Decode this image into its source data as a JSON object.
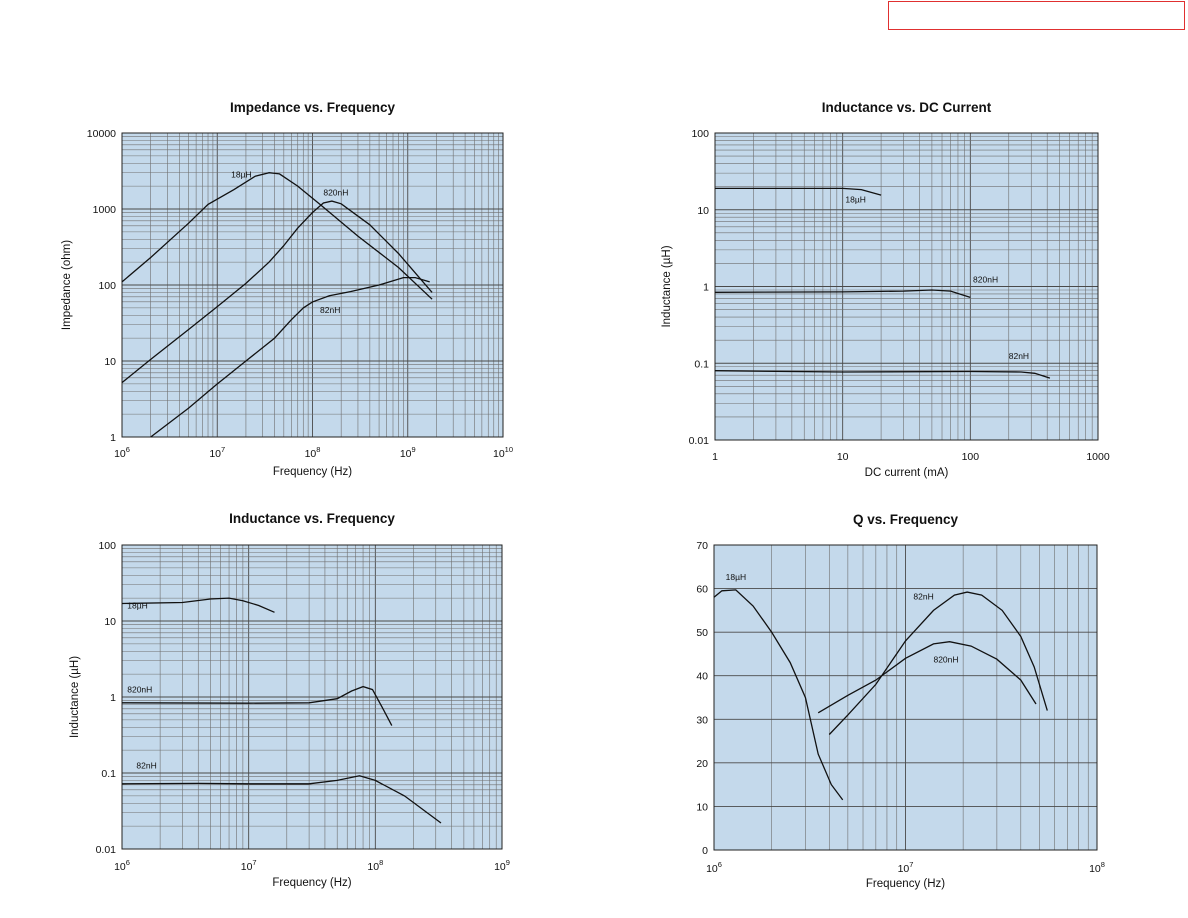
{
  "header": {
    "box_label": ""
  },
  "chart_data": [
    {
      "id": "impedance",
      "type": "line",
      "title": "Impedance vs. Frequency",
      "xlabel": "Frequency (Hz)",
      "ylabel": "Impedance (ohm)",
      "xscale": "log",
      "yscale": "log",
      "xlim": [
        1000000,
        10000000000
      ],
      "ylim": [
        1,
        10000
      ],
      "x_ticks": [
        {
          "base": "10",
          "exp": "6",
          "v": 1000000
        },
        {
          "base": "10",
          "exp": "7",
          "v": 10000000
        },
        {
          "base": "10",
          "exp": "8",
          "v": 100000000
        },
        {
          "base": "10",
          "exp": "9",
          "v": 1000000000
        },
        {
          "base": "10",
          "exp": "10",
          "v": 10000000000
        }
      ],
      "y_ticks": [
        {
          "label": "1",
          "v": 1
        },
        {
          "label": "10",
          "v": 10
        },
        {
          "label": "100",
          "v": 100
        },
        {
          "label": "1000",
          "v": 1000
        },
        {
          "label": "10000",
          "v": 10000
        }
      ],
      "grid": true,
      "series": [
        {
          "name": "18µH",
          "label_at": [
            14000000,
            2600
          ],
          "points": [
            [
              1000000,
              110
            ],
            [
              2000000,
              230
            ],
            [
              5000000,
              650
            ],
            [
              8000000,
              1150
            ],
            [
              15000000,
              1800
            ],
            [
              25000000,
              2700
            ],
            [
              35000000,
              3000
            ],
            [
              45000000,
              2900
            ],
            [
              70000000,
              2000
            ],
            [
              120000000,
              1150
            ],
            [
              300000000,
              440
            ],
            [
              800000000,
              170
            ],
            [
              1800000000,
              65
            ]
          ]
        },
        {
          "name": "820nH",
          "label_at": [
            130000000,
            1500
          ],
          "points": [
            [
              1000000,
              5.2
            ],
            [
              2000000,
              10.5
            ],
            [
              5000000,
              26
            ],
            [
              10000000,
              52
            ],
            [
              20000000,
              105
            ],
            [
              35000000,
              200
            ],
            [
              50000000,
              330
            ],
            [
              70000000,
              560
            ],
            [
              100000000,
              900
            ],
            [
              130000000,
              1200
            ],
            [
              160000000,
              1270
            ],
            [
              200000000,
              1170
            ],
            [
              400000000,
              620
            ],
            [
              800000000,
              260
            ],
            [
              1800000000,
              80
            ]
          ]
        },
        {
          "name": "82nH",
          "label_at": [
            120000000,
            43
          ],
          "points": [
            [
              2000000,
              1
            ],
            [
              5000000,
              2.4
            ],
            [
              10000000,
              5
            ],
            [
              20000000,
              10
            ],
            [
              40000000,
              20
            ],
            [
              60000000,
              35
            ],
            [
              80000000,
              50
            ],
            [
              100000000,
              60
            ],
            [
              150000000,
              72
            ],
            [
              250000000,
              82
            ],
            [
              500000000,
              100
            ],
            [
              900000000,
              125
            ],
            [
              1200000000,
              125
            ],
            [
              1700000000,
              110
            ]
          ]
        }
      ]
    },
    {
      "id": "inductance_dc",
      "type": "line",
      "title": "Inductance vs. DC Current",
      "xlabel": "DC current (mA)",
      "ylabel": "Inductance (µH)",
      "xscale": "log",
      "yscale": "log",
      "xlim": [
        1,
        1000
      ],
      "ylim": [
        0.01,
        100
      ],
      "x_ticks": [
        {
          "label": "1",
          "v": 1
        },
        {
          "label": "10",
          "v": 10
        },
        {
          "label": "100",
          "v": 100
        },
        {
          "label": "1000",
          "v": 1000
        }
      ],
      "y_ticks": [
        {
          "label": "0.01",
          "v": 0.01
        },
        {
          "label": "0.1",
          "v": 0.1
        },
        {
          "label": "1",
          "v": 1
        },
        {
          "label": "10",
          "v": 10
        },
        {
          "label": "100",
          "v": 100
        }
      ],
      "grid": true,
      "series": [
        {
          "name": "18µH",
          "label_at": [
            10.5,
            12.5
          ],
          "points": [
            [
              1,
              19
            ],
            [
              5,
              19
            ],
            [
              10,
              19
            ],
            [
              14,
              18.3
            ],
            [
              20,
              15.5
            ]
          ]
        },
        {
          "name": "820nH",
          "label_at": [
            105,
            1.12
          ],
          "points": [
            [
              1,
              0.84
            ],
            [
              10,
              0.85
            ],
            [
              30,
              0.87
            ],
            [
              50,
              0.9
            ],
            [
              70,
              0.87
            ],
            [
              100,
              0.72
            ]
          ]
        },
        {
          "name": "82nH",
          "label_at": [
            200,
            0.113
          ],
          "points": [
            [
              1,
              0.08
            ],
            [
              10,
              0.077
            ],
            [
              100,
              0.078
            ],
            [
              250,
              0.077
            ],
            [
              320,
              0.074
            ],
            [
              420,
              0.064
            ]
          ]
        }
      ]
    },
    {
      "id": "inductance_freq",
      "type": "line",
      "title": "Inductance vs. Frequency",
      "xlabel": "Frequency (Hz)",
      "ylabel": "Inductance (µH)",
      "xscale": "log",
      "yscale": "log",
      "xlim": [
        1000000,
        1000000000
      ],
      "ylim": [
        0.01,
        100
      ],
      "x_ticks": [
        {
          "base": "10",
          "exp": "6",
          "v": 1000000
        },
        {
          "base": "10",
          "exp": "7",
          "v": 10000000
        },
        {
          "base": "10",
          "exp": "8",
          "v": 100000000
        },
        {
          "base": "10",
          "exp": "9",
          "v": 1000000000
        }
      ],
      "y_ticks": [
        {
          "label": "0.01",
          "v": 0.01
        },
        {
          "label": "0.1",
          "v": 0.1
        },
        {
          "label": "1",
          "v": 1
        },
        {
          "label": "10",
          "v": 10
        },
        {
          "label": "100",
          "v": 100
        }
      ],
      "grid": true,
      "series": [
        {
          "name": "18µH",
          "label_at": [
            1100000,
            14.5
          ],
          "points": [
            [
              1000000,
              17
            ],
            [
              3000000,
              17.5
            ],
            [
              5000000,
              19.5
            ],
            [
              7000000,
              20
            ],
            [
              9000000,
              18.5
            ],
            [
              12000000,
              16
            ],
            [
              16000000,
              13
            ]
          ]
        },
        {
          "name": "820nH",
          "label_at": [
            1100000,
            1.15
          ],
          "points": [
            [
              1000000,
              0.84
            ],
            [
              10000000,
              0.83
            ],
            [
              30000000,
              0.84
            ],
            [
              50000000,
              0.95
            ],
            [
              65000000,
              1.2
            ],
            [
              80000000,
              1.37
            ],
            [
              95000000,
              1.25
            ],
            [
              115000000,
              0.7
            ],
            [
              135000000,
              0.42
            ]
          ]
        },
        {
          "name": "82nH",
          "label_at": [
            1300000,
            0.115
          ],
          "points": [
            [
              1000000,
              0.072
            ],
            [
              4000000,
              0.073
            ],
            [
              10000000,
              0.072
            ],
            [
              30000000,
              0.072
            ],
            [
              50000000,
              0.08
            ],
            [
              75000000,
              0.092
            ],
            [
              100000000,
              0.08
            ],
            [
              170000000,
              0.05
            ],
            [
              330000000,
              0.022
            ]
          ]
        }
      ]
    },
    {
      "id": "q_freq",
      "type": "line",
      "title": "Q vs. Frequency",
      "xlabel": "Frequency (Hz)",
      "ylabel": "",
      "xscale": "log",
      "yscale": "linear",
      "xlim": [
        1000000,
        100000000
      ],
      "ylim": [
        0,
        70
      ],
      "x_ticks": [
        {
          "base": "10",
          "exp": "6",
          "v": 1000000
        },
        {
          "base": "10",
          "exp": "7",
          "v": 10000000
        },
        {
          "base": "10",
          "exp": "8",
          "v": 100000000
        }
      ],
      "y_ticks": [
        {
          "label": "0",
          "v": 0
        },
        {
          "label": "10",
          "v": 10
        },
        {
          "label": "20",
          "v": 20
        },
        {
          "label": "30",
          "v": 30
        },
        {
          "label": "40",
          "v": 40
        },
        {
          "label": "50",
          "v": 50
        },
        {
          "label": "60",
          "v": 60
        },
        {
          "label": "70",
          "v": 70
        }
      ],
      "grid": true,
      "series": [
        {
          "name": "18µH",
          "label_at": [
            1150000,
            62
          ],
          "points": [
            [
              1000000,
              58
            ],
            [
              1100000,
              59.5
            ],
            [
              1300000,
              59.7
            ],
            [
              1600000,
              56
            ],
            [
              2000000,
              50
            ],
            [
              2500000,
              43
            ],
            [
              3000000,
              35
            ],
            [
              3500000,
              22
            ],
            [
              4100000,
              15
            ],
            [
              4700000,
              11.5
            ]
          ]
        },
        {
          "name": "82nH",
          "label_at": [
            11000000,
            57.5
          ],
          "points": [
            [
              4000000,
              26.5
            ],
            [
              5000000,
              31
            ],
            [
              7000000,
              38
            ],
            [
              10000000,
              48
            ],
            [
              14000000,
              55
            ],
            [
              18000000,
              58.5
            ],
            [
              21000000,
              59.2
            ],
            [
              25000000,
              58.5
            ],
            [
              32000000,
              55
            ],
            [
              40000000,
              49
            ],
            [
              47000000,
              42
            ],
            [
              55000000,
              32
            ]
          ]
        },
        {
          "name": "820nH",
          "label_at": [
            14000000,
            43
          ],
          "points": [
            [
              3500000,
              31.5
            ],
            [
              5000000,
              35.5
            ],
            [
              7000000,
              39
            ],
            [
              10000000,
              44
            ],
            [
              14000000,
              47.3
            ],
            [
              17000000,
              47.8
            ],
            [
              22000000,
              46.8
            ],
            [
              30000000,
              43.8
            ],
            [
              40000000,
              39
            ],
            [
              48000000,
              33.5
            ]
          ]
        }
      ]
    }
  ]
}
